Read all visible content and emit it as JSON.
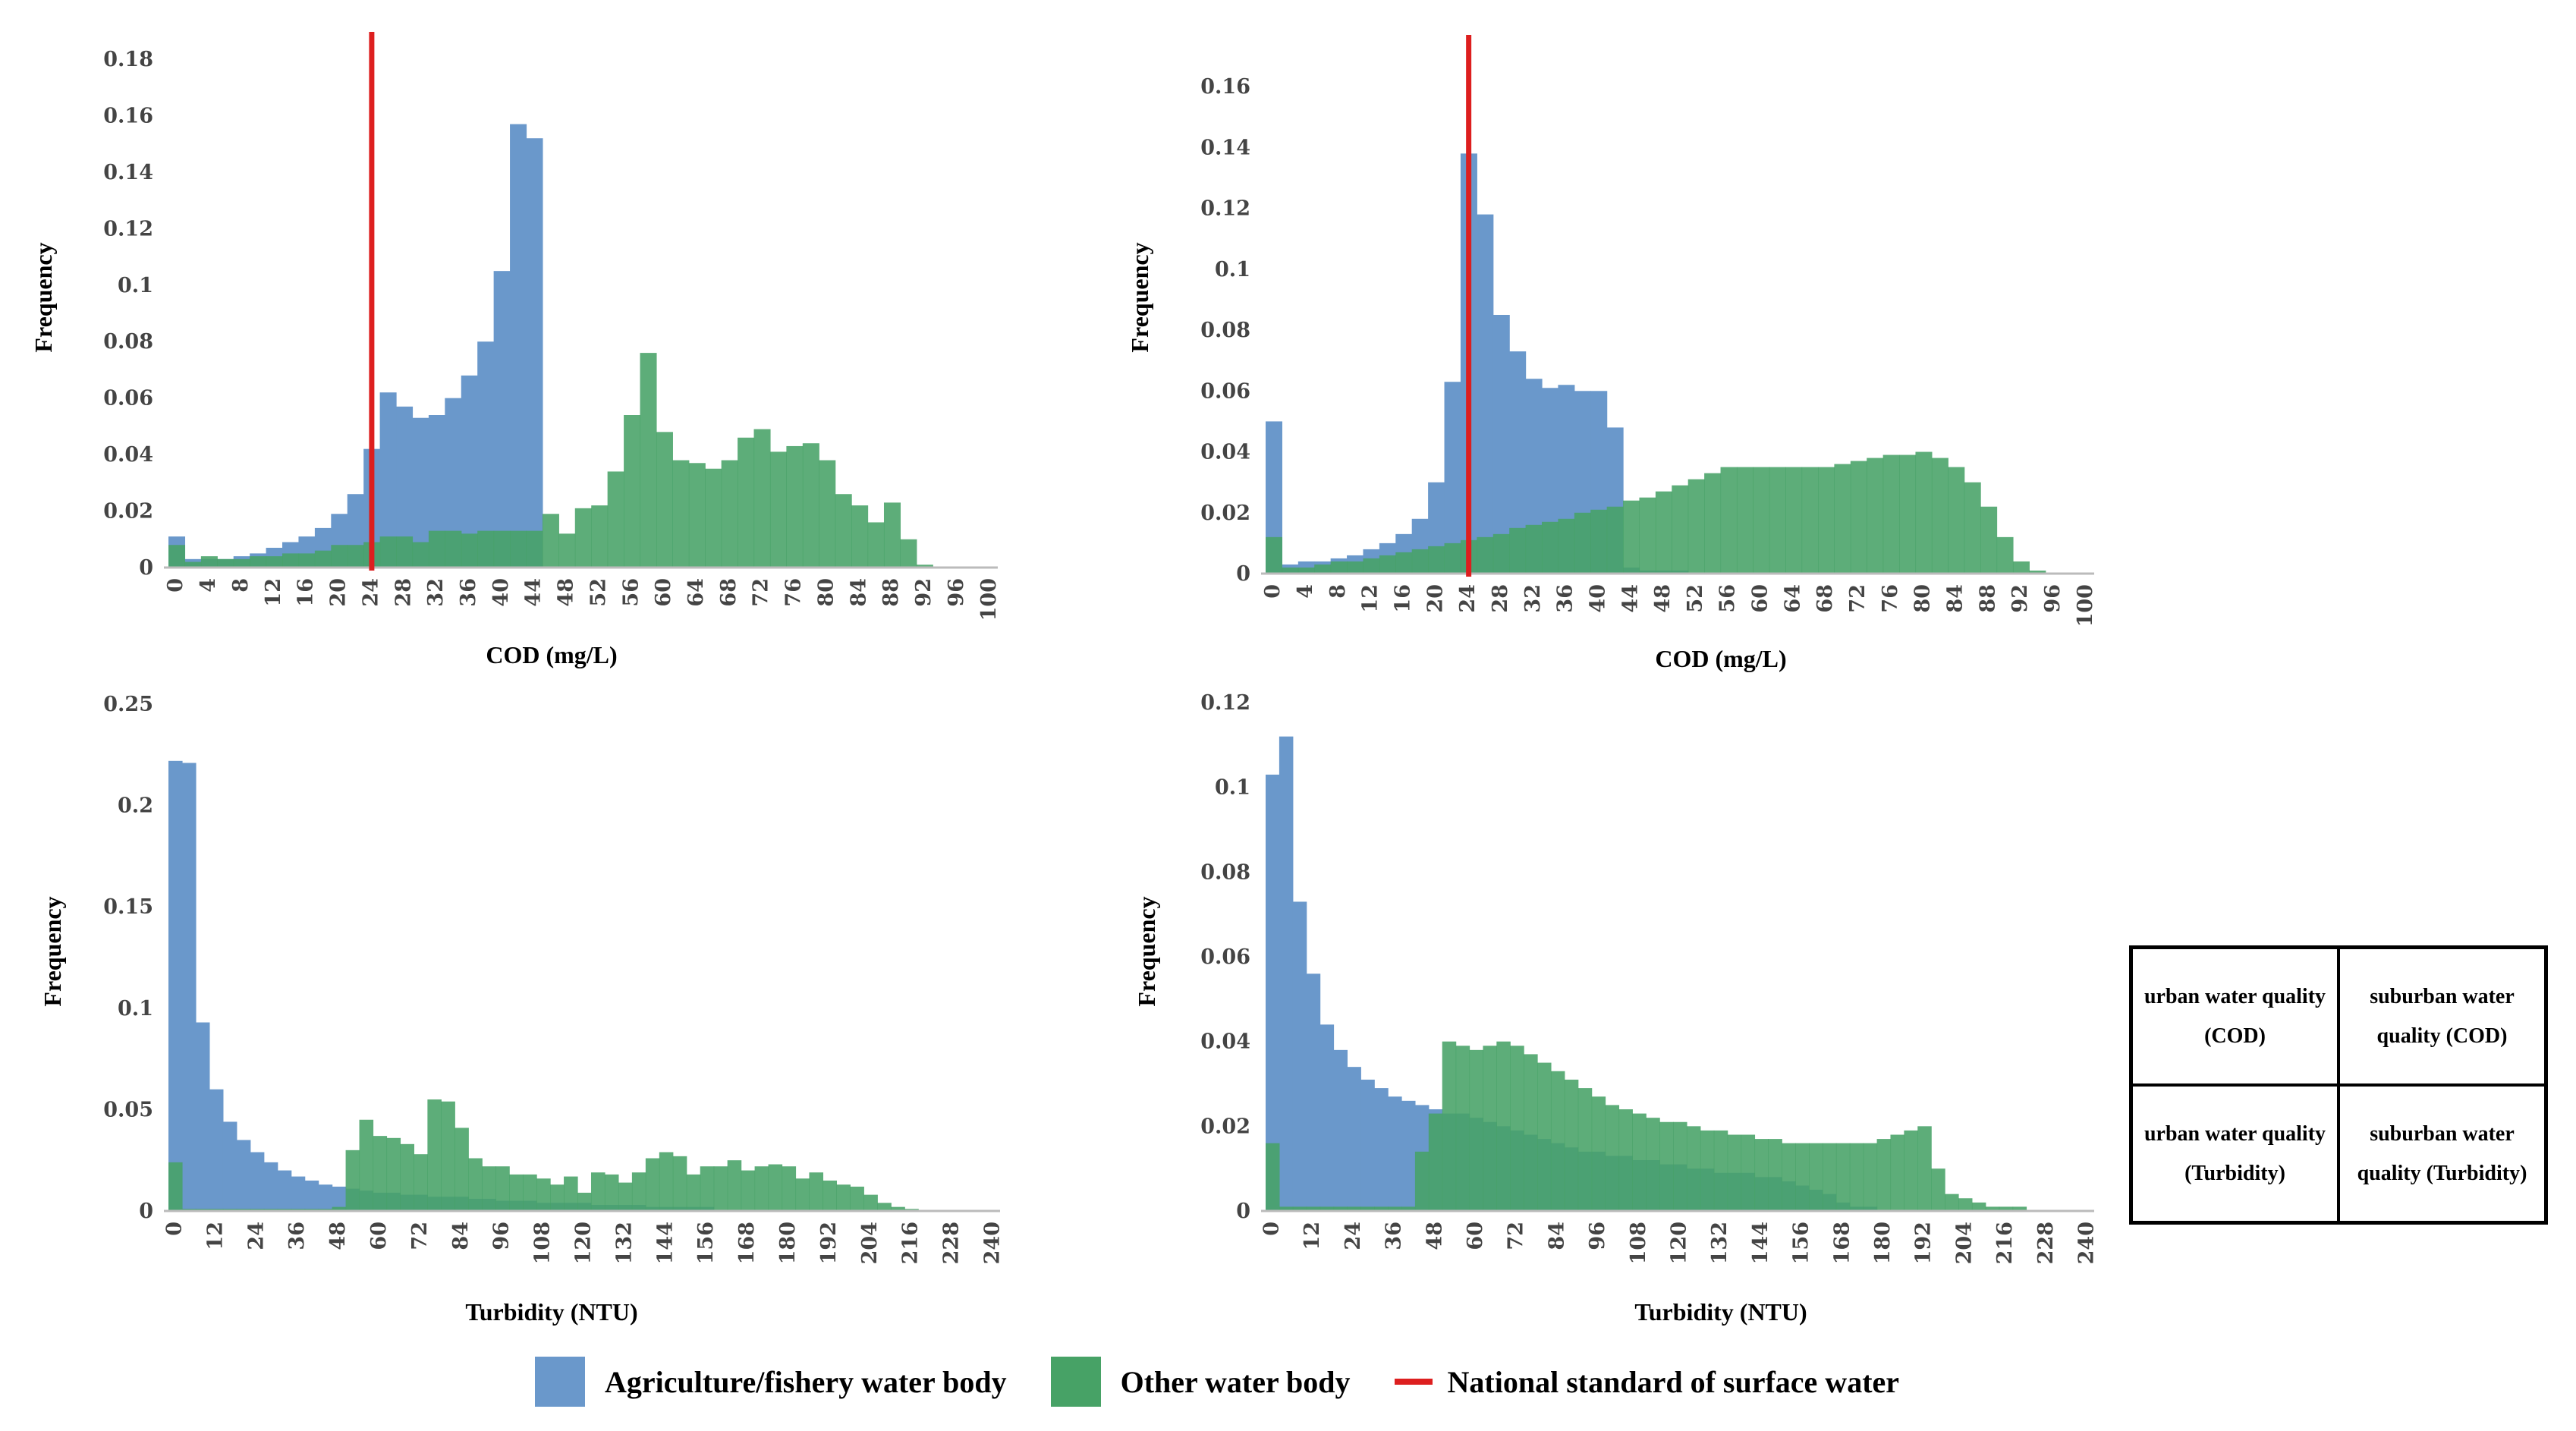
{
  "colors": {
    "agriculture": "#6a98cb",
    "other": "#47a266",
    "standard": "#dd1f1f",
    "axis": "#bbbbbb"
  },
  "legend": {
    "agriculture": "Agriculture/fishery water body",
    "other": "Other water body",
    "standard": "National standard of surface water"
  },
  "key_table": {
    "r1c1": "urban water quality (COD)",
    "r1c2": "suburban water quality (COD)",
    "r2c1": "urban water quality (Turbidity)",
    "r2c2": "suburban water quality (Turbidity)"
  },
  "chart_data": [
    {
      "id": "urban-cod",
      "type": "bar",
      "title": "",
      "xlabel": "COD (mg/L)",
      "ylabel": "Frequency",
      "x_start": 0,
      "bin_width": 2,
      "bins": 51,
      "xticks": [
        "0",
        "4",
        "8",
        "12",
        "16",
        "20",
        "24",
        "28",
        "32",
        "36",
        "40",
        "44",
        "48",
        "52",
        "56",
        "60",
        "64",
        "68",
        "72",
        "76",
        "80",
        "84",
        "88",
        "92",
        "96",
        "100"
      ],
      "yticks": [
        "0",
        "0.02",
        "0.04",
        "0.06",
        "0.08",
        "0.1",
        "0.12",
        "0.14",
        "0.16",
        "0.18"
      ],
      "ylim": [
        0,
        0.18
      ],
      "standard_x": 25,
      "series": [
        {
          "name": "Agriculture/fishery water body",
          "values": [
            0.011,
            0.003,
            0.003,
            0.003,
            0.004,
            0.005,
            0.007,
            0.009,
            0.011,
            0.014,
            0.019,
            0.026,
            0.042,
            0.062,
            0.057,
            0.053,
            0.054,
            0.06,
            0.068,
            0.08,
            0.105,
            0.157,
            0.152,
            0,
            0,
            0,
            0,
            0,
            0,
            0,
            0,
            0,
            0,
            0,
            0,
            0,
            0,
            0,
            0,
            0,
            0,
            0,
            0,
            0,
            0,
            0,
            0,
            0,
            0,
            0,
            0
          ]
        },
        {
          "name": "Other water body",
          "values": [
            0.008,
            0.002,
            0.004,
            0.003,
            0.003,
            0.004,
            0.004,
            0.005,
            0.005,
            0.006,
            0.008,
            0.008,
            0.009,
            0.011,
            0.011,
            0.009,
            0.013,
            0.013,
            0.012,
            0.013,
            0.013,
            0.013,
            0.013,
            0.019,
            0.012,
            0.021,
            0.022,
            0.034,
            0.054,
            0.076,
            0.048,
            0.038,
            0.037,
            0.035,
            0.038,
            0.046,
            0.049,
            0.041,
            0.043,
            0.044,
            0.038,
            0.026,
            0.022,
            0.016,
            0.023,
            0.01,
            0.001,
            0,
            0,
            0,
            0
          ]
        }
      ]
    },
    {
      "id": "suburban-cod",
      "type": "bar",
      "title": "",
      "xlabel": "COD (mg/L)",
      "ylabel": "Frequency",
      "x_start": 0,
      "bin_width": 2,
      "bins": 51,
      "xticks": [
        "0",
        "4",
        "8",
        "12",
        "16",
        "20",
        "24",
        "28",
        "32",
        "36",
        "40",
        "44",
        "48",
        "52",
        "56",
        "60",
        "64",
        "68",
        "72",
        "76",
        "80",
        "84",
        "88",
        "92",
        "96",
        "100"
      ],
      "yticks": [
        "0",
        "0.02",
        "0.04",
        "0.06",
        "0.08",
        "0.1",
        "0.12",
        "0.14",
        "0.16"
      ],
      "ylim": [
        0,
        0.168
      ],
      "standard_x": 25,
      "series": [
        {
          "name": "Agriculture/fishery water body",
          "values": [
            0.05,
            0.003,
            0.004,
            0.004,
            0.005,
            0.006,
            0.008,
            0.01,
            0.013,
            0.018,
            0.03,
            0.063,
            0.138,
            0.118,
            0.085,
            0.073,
            0.064,
            0.061,
            0.062,
            0.06,
            0.06,
            0.048,
            0.002,
            0.001,
            0.001,
            0.001,
            0,
            0,
            0,
            0,
            0,
            0,
            0,
            0,
            0,
            0,
            0,
            0,
            0,
            0,
            0,
            0,
            0,
            0,
            0,
            0,
            0,
            0,
            0,
            0,
            0
          ]
        },
        {
          "name": "Other water body",
          "values": [
            0.012,
            0.002,
            0.002,
            0.003,
            0.004,
            0.004,
            0.005,
            0.006,
            0.007,
            0.008,
            0.009,
            0.01,
            0.011,
            0.012,
            0.013,
            0.015,
            0.016,
            0.017,
            0.018,
            0.02,
            0.021,
            0.022,
            0.024,
            0.025,
            0.027,
            0.029,
            0.031,
            0.033,
            0.035,
            0.035,
            0.035,
            0.035,
            0.035,
            0.035,
            0.035,
            0.036,
            0.037,
            0.038,
            0.039,
            0.039,
            0.04,
            0.038,
            0.035,
            0.03,
            0.022,
            0.012,
            0.004,
            0.001,
            0,
            0,
            0
          ]
        }
      ]
    },
    {
      "id": "urban-turbidity",
      "type": "bar",
      "title": "",
      "xlabel": "Turbidity (NTU)",
      "ylabel": "Frequency",
      "x_start": 0,
      "bin_width": 4,
      "bins": 61,
      "xticks": [
        "0",
        "12",
        "24",
        "36",
        "48",
        "60",
        "72",
        "84",
        "96",
        "108",
        "120",
        "132",
        "144",
        "156",
        "168",
        "180",
        "192",
        "204",
        "216",
        "228",
        "240"
      ],
      "yticks": [
        "0",
        "0.05",
        "0.1",
        "0.15",
        "0.2",
        "0.25"
      ],
      "ylim": [
        0,
        0.25
      ],
      "series": [
        {
          "name": "Agriculture/fishery water body",
          "values": [
            0.222,
            0.221,
            0.093,
            0.06,
            0.044,
            0.035,
            0.029,
            0.024,
            0.02,
            0.017,
            0.015,
            0.013,
            0.012,
            0.011,
            0.01,
            0.009,
            0.009,
            0.008,
            0.008,
            0.007,
            0.007,
            0.007,
            0.006,
            0.006,
            0.005,
            0.005,
            0.005,
            0.004,
            0.004,
            0.004,
            0.004,
            0.003,
            0.003,
            0.003,
            0.003,
            0.002,
            0.002,
            0.002,
            0.002,
            0.002,
            0,
            0,
            0,
            0,
            0,
            0,
            0,
            0,
            0,
            0,
            0,
            0,
            0,
            0,
            0,
            0,
            0,
            0,
            0,
            0,
            0
          ]
        },
        {
          "name": "Other water body",
          "values": [
            0.024,
            0.001,
            0.001,
            0.001,
            0.001,
            0.001,
            0.001,
            0.001,
            0.001,
            0.001,
            0.001,
            0.001,
            0.002,
            0.03,
            0.045,
            0.037,
            0.036,
            0.033,
            0.028,
            0.055,
            0.054,
            0.041,
            0.026,
            0.022,
            0.022,
            0.018,
            0.018,
            0.016,
            0.013,
            0.017,
            0.009,
            0.019,
            0.018,
            0.014,
            0.019,
            0.026,
            0.029,
            0.027,
            0.018,
            0.022,
            0.022,
            0.025,
            0.02,
            0.022,
            0.023,
            0.022,
            0.016,
            0.019,
            0.015,
            0.013,
            0.012,
            0.008,
            0.004,
            0.002,
            0.001,
            0,
            0,
            0,
            0,
            0,
            0
          ]
        }
      ]
    },
    {
      "id": "suburban-turbidity",
      "type": "bar",
      "title": "",
      "xlabel": "Turbidity (NTU)",
      "ylabel": "Frequency",
      "x_start": 0,
      "bin_width": 4,
      "bins": 61,
      "xticks": [
        "0",
        "12",
        "24",
        "36",
        "48",
        "60",
        "72",
        "84",
        "96",
        "108",
        "120",
        "132",
        "144",
        "156",
        "168",
        "180",
        "192",
        "204",
        "216",
        "228",
        "240"
      ],
      "yticks": [
        "0",
        "0.02",
        "0.04",
        "0.06",
        "0.08",
        "0.1",
        "0.12"
      ],
      "ylim": [
        0,
        0.12
      ],
      "series": [
        {
          "name": "Agriculture/fishery water body",
          "values": [
            0.103,
            0.112,
            0.073,
            0.056,
            0.044,
            0.038,
            0.034,
            0.031,
            0.029,
            0.027,
            0.026,
            0.025,
            0.024,
            0.023,
            0.023,
            0.022,
            0.021,
            0.02,
            0.019,
            0.018,
            0.017,
            0.016,
            0.015,
            0.014,
            0.014,
            0.013,
            0.013,
            0.012,
            0.012,
            0.011,
            0.011,
            0.01,
            0.01,
            0.009,
            0.009,
            0.009,
            0.008,
            0.008,
            0.007,
            0.006,
            0.005,
            0.004,
            0.002,
            0.001,
            0.001,
            0,
            0,
            0,
            0,
            0,
            0,
            0,
            0,
            0,
            0,
            0,
            0,
            0,
            0,
            0,
            0
          ]
        },
        {
          "name": "Other water body",
          "values": [
            0.016,
            0.001,
            0.001,
            0.001,
            0.001,
            0.001,
            0.001,
            0.001,
            0.001,
            0.001,
            0.001,
            0.014,
            0.023,
            0.04,
            0.039,
            0.038,
            0.039,
            0.04,
            0.039,
            0.037,
            0.035,
            0.033,
            0.031,
            0.029,
            0.027,
            0.025,
            0.024,
            0.023,
            0.022,
            0.021,
            0.021,
            0.02,
            0.019,
            0.019,
            0.018,
            0.018,
            0.017,
            0.017,
            0.016,
            0.016,
            0.016,
            0.016,
            0.016,
            0.016,
            0.016,
            0.017,
            0.018,
            0.019,
            0.02,
            0.01,
            0.004,
            0.003,
            0.002,
            0.001,
            0.001,
            0.001,
            0,
            0,
            0,
            0,
            0
          ]
        }
      ]
    }
  ]
}
